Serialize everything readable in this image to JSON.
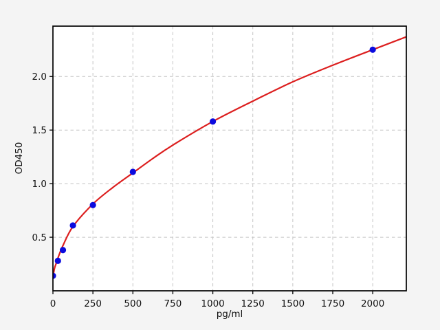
{
  "figure": {
    "background_color": "#f4f4f4",
    "plot_background_color": "#ffffff",
    "grid_color": "#c4c4c4",
    "spine_color": "#000000",
    "text_color": "#111111"
  },
  "chart_data": {
    "type": "scatter",
    "title": "",
    "xlabel": "pg/ml",
    "ylabel": "OD450",
    "xlim": [
      0,
      2210
    ],
    "ylim": [
      0,
      2.47
    ],
    "xticks": [
      0,
      250,
      500,
      750,
      1000,
      1250,
      1500,
      1750,
      2000
    ],
    "xtick_labels": [
      "0",
      "250",
      "500",
      "750",
      "1000",
      "1250",
      "1500",
      "1750",
      "2000"
    ],
    "yticks": [
      0.5,
      1.0,
      1.5,
      2.0
    ],
    "ytick_labels": [
      "0.5",
      "1.0",
      "1.5",
      "2.0"
    ],
    "grid": "dashed",
    "legend": "none",
    "series": [
      {
        "name": "standard-points",
        "type": "scatter",
        "marker": "circle",
        "color": "#0b0bdf",
        "x": [
          0,
          31.25,
          62.5,
          125,
          250,
          500,
          1000,
          2000
        ],
        "y": [
          0.14,
          0.28,
          0.38,
          0.61,
          0.8,
          1.11,
          1.58,
          2.25
        ]
      },
      {
        "name": "fit-curve",
        "type": "line",
        "color": "#dc1e1e",
        "x": [
          0,
          10,
          20,
          31,
          62,
          125,
          250,
          375,
          500,
          625,
          750,
          1000,
          1250,
          1500,
          1750,
          2000,
          2210
        ],
        "y": [
          0.13,
          0.21,
          0.255,
          0.305,
          0.42,
          0.6,
          0.81,
          0.965,
          1.1,
          1.235,
          1.36,
          1.58,
          1.77,
          1.95,
          2.105,
          2.25,
          2.37
        ]
      }
    ]
  }
}
